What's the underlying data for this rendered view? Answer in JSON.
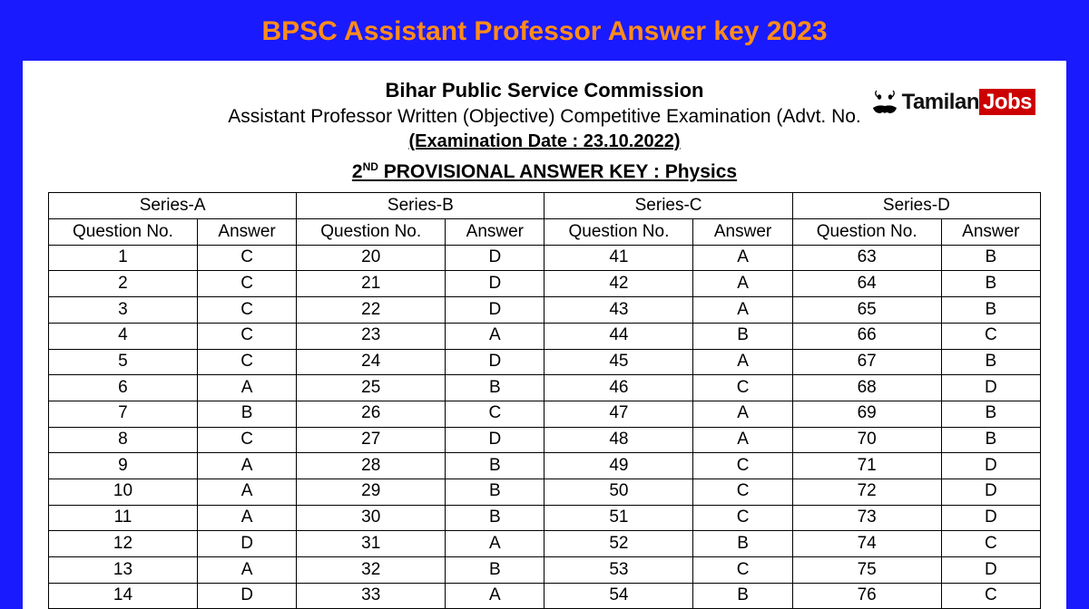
{
  "pageTitle": "BPSC Assistant Professor Answer key 2023",
  "logo": {
    "tamilan": "Tamilan",
    "jobs": "Jobs"
  },
  "header": {
    "org": "Bihar Public Service Commission",
    "exam": "Assistant Professor Written (Objective) Competitive Examination (Advt. No.",
    "date": "(Examination Date : 23.10.2022)",
    "keyPrefix": "2",
    "keySup": "ND",
    "keyRest": " PROVISIONAL ANSWER KEY :  Physics"
  },
  "table": {
    "seriesHeaders": [
      "Series-A",
      "Series-B",
      "Series-C",
      "Series-D"
    ],
    "columnHeaders": {
      "q": "Question No.",
      "a": "Answer"
    },
    "styling": {
      "border_color": "#000000",
      "background": "#ffffff",
      "text_color": "#000000",
      "font_size": 19,
      "cell_padding": "1.5px 2px",
      "text_align": "center",
      "qcol_width_pct": 15,
      "acol_width_pct": 10
    },
    "rows": [
      {
        "a_q": "1",
        "a_a": "C",
        "b_q": "20",
        "b_a": "D",
        "c_q": "41",
        "c_a": "A",
        "d_q": "63",
        "d_a": "B"
      },
      {
        "a_q": "2",
        "a_a": "C",
        "b_q": "21",
        "b_a": "D",
        "c_q": "42",
        "c_a": "A",
        "d_q": "64",
        "d_a": "B"
      },
      {
        "a_q": "3",
        "a_a": "C",
        "b_q": "22",
        "b_a": "D",
        "c_q": "43",
        "c_a": "A",
        "d_q": "65",
        "d_a": "B"
      },
      {
        "a_q": "4",
        "a_a": "C",
        "b_q": "23",
        "b_a": "A",
        "c_q": "44",
        "c_a": "B",
        "d_q": "66",
        "d_a": "C"
      },
      {
        "a_q": "5",
        "a_a": "C",
        "b_q": "24",
        "b_a": "D",
        "c_q": "45",
        "c_a": "A",
        "d_q": "67",
        "d_a": "B"
      },
      {
        "a_q": "6",
        "a_a": "A",
        "b_q": "25",
        "b_a": "B",
        "c_q": "46",
        "c_a": "C",
        "d_q": "68",
        "d_a": "D"
      },
      {
        "a_q": "7",
        "a_a": "B",
        "b_q": "26",
        "b_a": "C",
        "c_q": "47",
        "c_a": "A",
        "d_q": "69",
        "d_a": "B"
      },
      {
        "a_q": "8",
        "a_a": "C",
        "b_q": "27",
        "b_a": "D",
        "c_q": "48",
        "c_a": "A",
        "d_q": "70",
        "d_a": "B"
      },
      {
        "a_q": "9",
        "a_a": "A",
        "b_q": "28",
        "b_a": "B",
        "c_q": "49",
        "c_a": "C",
        "d_q": "71",
        "d_a": "D"
      },
      {
        "a_q": "10",
        "a_a": "A",
        "b_q": "29",
        "b_a": "B",
        "c_q": "50",
        "c_a": "C",
        "d_q": "72",
        "d_a": "D"
      },
      {
        "a_q": "11",
        "a_a": "A",
        "b_q": "30",
        "b_a": "B",
        "c_q": "51",
        "c_a": "C",
        "d_q": "73",
        "d_a": "D"
      },
      {
        "a_q": "12",
        "a_a": "D",
        "b_q": "31",
        "b_a": "A",
        "c_q": "52",
        "c_a": "B",
        "d_q": "74",
        "d_a": "C"
      },
      {
        "a_q": "13",
        "a_a": "A",
        "b_q": "32",
        "b_a": "B",
        "c_q": "53",
        "c_a": "C",
        "d_q": "75",
        "d_a": "D"
      },
      {
        "a_q": "14",
        "a_a": "D",
        "b_q": "33",
        "b_a": "A",
        "c_q": "54",
        "c_a": "B",
        "d_q": "76",
        "d_a": "C"
      }
    ]
  },
  "colors": {
    "page_background": "#1a1aff",
    "title_color": "#ff8c1a",
    "doc_background": "#ffffff",
    "logo_jobs_bg": "#cc0000",
    "logo_jobs_fg": "#ffffff"
  }
}
